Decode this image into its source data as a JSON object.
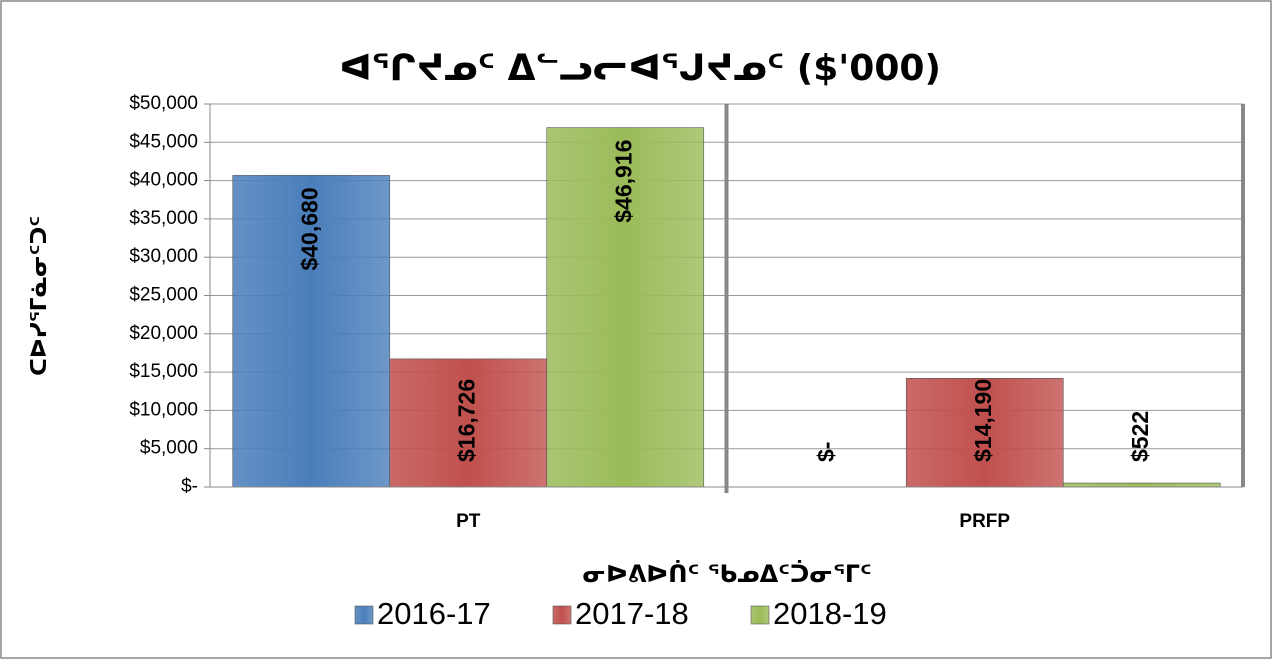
{
  "chart_data": {
    "type": "bar",
    "title": "ᐊᕐᒋᔪᓄᑦ ᐃᓪᓗᓕᐊᕐᒍᔪᓄᑦ ($'000)",
    "y_label": "ᑕᐅᓯᕐᒥᓈᓂᑦᑐᑦ",
    "x_label": "ᓂᐅᕕᐅᑏᑦ ᖃᓄᐃᑦᑑᓂᕐᒥᑦ",
    "categories": [
      "PT",
      "PRFP"
    ],
    "series": [
      {
        "name": "2016-17",
        "color": "#4a7ebb",
        "values": [
          40680,
          0
        ],
        "value_labels": [
          "$40,680",
          "$-"
        ]
      },
      {
        "name": "2017-18",
        "color": "#c0504d",
        "values": [
          16726,
          14190
        ],
        "value_labels": [
          "$16,726",
          "$14,190"
        ]
      },
      {
        "name": "2018-19",
        "color": "#9bbb59",
        "values": [
          46916,
          522
        ],
        "value_labels": [
          "$46,916",
          "$522"
        ]
      }
    ],
    "ylim": [
      0,
      50000
    ],
    "yticks": [
      {
        "value": 0,
        "label": "$-"
      },
      {
        "value": 5000,
        "label": "$5,000"
      },
      {
        "value": 10000,
        "label": "$10,000"
      },
      {
        "value": 15000,
        "label": "$15,000"
      },
      {
        "value": 20000,
        "label": "$20,000"
      },
      {
        "value": 25000,
        "label": "$25,000"
      },
      {
        "value": 30000,
        "label": "$30,000"
      },
      {
        "value": 35000,
        "label": "$35,000"
      },
      {
        "value": 40000,
        "label": "$40,000"
      },
      {
        "value": 45000,
        "label": "$45,000"
      },
      {
        "value": 50000,
        "label": "$50,000"
      }
    ],
    "grid": true,
    "legend": "bottom"
  }
}
